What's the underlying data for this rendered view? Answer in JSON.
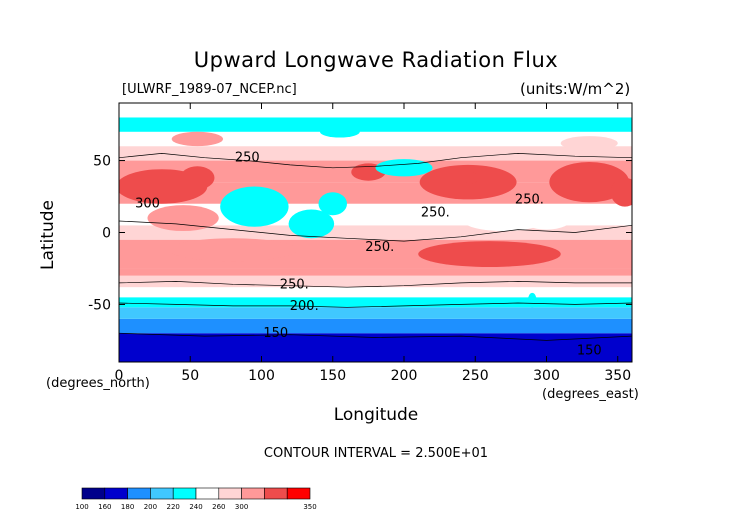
{
  "header": {
    "title": "Upward Longwave Radiation Flux",
    "source_file": "[ULWRF_1989-07_NCEP.nc]",
    "units": "(units:W/m^2)"
  },
  "footer": {
    "contour_interval": "CONTOUR INTERVAL = 2.500E+01"
  },
  "colors": {
    "c100": "#00008b",
    "c160": "#0000cd",
    "c180": "#1e90ff",
    "c200": "#40c8ff",
    "c220": "#00ffff",
    "c240": "#ffffff",
    "c250": "#ffd5d5",
    "c260": "#ff9999",
    "c300": "#ee4c4c",
    "c350": "#ff0000"
  },
  "chart_data": {
    "type": "heatmap",
    "title": "Upward Longwave Radiation Flux",
    "xlabel": "Longitude",
    "ylabel": "Latitude",
    "x_units": "(degrees_east)",
    "y_units": "(degrees_north)",
    "xlim": [
      0,
      360
    ],
    "ylim": [
      -90,
      90
    ],
    "xticks": [
      0,
      50,
      100,
      150,
      200,
      250,
      300,
      350
    ],
    "yticks": [
      -50,
      0,
      50
    ],
    "colorbar": {
      "boundaries": [
        100,
        160,
        180,
        200,
        220,
        240,
        260,
        300,
        350
      ],
      "colors": [
        "#00008b",
        "#0000cd",
        "#1e90ff",
        "#40c8ff",
        "#00ffff",
        "#ffffff",
        "#ffd5d5",
        "#ff9999",
        "#ee4c4c",
        "#ff0000"
      ]
    },
    "zonal_bands": [
      {
        "lat_min": -90,
        "lat_max": -70,
        "value": 150
      },
      {
        "lat_min": -70,
        "lat_max": -60,
        "value": 170
      },
      {
        "lat_min": -60,
        "lat_max": -52,
        "value": 195
      },
      {
        "lat_min": -52,
        "lat_max": -45,
        "value": 215
      },
      {
        "lat_min": -45,
        "lat_max": -38,
        "value": 230
      },
      {
        "lat_min": -38,
        "lat_max": -30,
        "value": 245
      },
      {
        "lat_min": -30,
        "lat_max": -25,
        "value": 265
      },
      {
        "lat_min": -25,
        "lat_max": -5,
        "value": 285
      },
      {
        "lat_min": -5,
        "lat_max": 5,
        "value": 255
      },
      {
        "lat_min": 5,
        "lat_max": 20,
        "value": 235
      },
      {
        "lat_min": 20,
        "lat_max": 35,
        "value": 275
      },
      {
        "lat_min": 35,
        "lat_max": 50,
        "value": 262
      },
      {
        "lat_min": 50,
        "lat_max": 60,
        "value": 248
      },
      {
        "lat_min": 60,
        "lat_max": 70,
        "value": 238
      },
      {
        "lat_min": 70,
        "lat_max": 80,
        "value": 215
      },
      {
        "lat_min": 80,
        "lat_max": 90,
        "value": 235
      }
    ],
    "features": [
      {
        "lon": 30,
        "lat": 32,
        "rx": 32,
        "ry": 12,
        "value": 320
      },
      {
        "lon": 55,
        "lat": 38,
        "rx": 12,
        "ry": 8,
        "value": 330
      },
      {
        "lon": 45,
        "lat": 10,
        "rx": 25,
        "ry": 9,
        "value": 265
      },
      {
        "lon": 95,
        "lat": 18,
        "rx": 24,
        "ry": 14,
        "value": 212
      },
      {
        "lon": 135,
        "lat": 6,
        "rx": 16,
        "ry": 10,
        "value": 215
      },
      {
        "lon": 150,
        "lat": 20,
        "rx": 10,
        "ry": 8,
        "value": 218
      },
      {
        "lon": 175,
        "lat": 42,
        "rx": 12,
        "ry": 6,
        "value": 300
      },
      {
        "lon": 200,
        "lat": 45,
        "rx": 20,
        "ry": 6,
        "value": 215
      },
      {
        "lon": 245,
        "lat": 35,
        "rx": 34,
        "ry": 12,
        "value": 310
      },
      {
        "lon": 247,
        "lat": 38,
        "rx": 5,
        "ry": 4,
        "value": 345
      },
      {
        "lon": 270,
        "lat": 8,
        "rx": 28,
        "ry": 7,
        "value": 220
      },
      {
        "lon": 300,
        "lat": 10,
        "rx": 18,
        "ry": 8,
        "value": 222
      },
      {
        "lon": 330,
        "lat": 35,
        "rx": 28,
        "ry": 14,
        "value": 300
      },
      {
        "lon": 355,
        "lat": 28,
        "rx": 10,
        "ry": 10,
        "value": 330
      },
      {
        "lon": 260,
        "lat": -15,
        "rx": 50,
        "ry": 9,
        "value": 300
      },
      {
        "lon": 80,
        "lat": -12,
        "rx": 45,
        "ry": 8,
        "value": 295
      },
      {
        "lon": 155,
        "lat": 70,
        "rx": 14,
        "ry": 4,
        "value": 210
      },
      {
        "lon": 290,
        "lat": -47,
        "rx": 3,
        "ry": 5,
        "value": 200
      },
      {
        "lon": 55,
        "lat": 65,
        "rx": 18,
        "ry": 5,
        "value": 260
      },
      {
        "lon": 330,
        "lat": 62,
        "rx": 20,
        "ry": 5,
        "value": 255
      }
    ],
    "contour_labels": [
      {
        "text": "250",
        "lon": 90,
        "lat": 52
      },
      {
        "text": "300",
        "lon": 20,
        "lat": 20
      },
      {
        "text": "250.",
        "lon": 222,
        "lat": 14
      },
      {
        "text": "250.",
        "lon": 288,
        "lat": 23
      },
      {
        "text": "250.",
        "lon": 183,
        "lat": -10
      },
      {
        "text": "250.",
        "lon": 123,
        "lat": -36
      },
      {
        "text": "200.",
        "lon": 130,
        "lat": -51
      },
      {
        "text": "150",
        "lon": 110,
        "lat": -70
      },
      {
        "text": "150",
        "lon": 330,
        "lat": -82
      }
    ],
    "contour_lines": [
      {
        "value": 250,
        "points": [
          [
            0,
            -35
          ],
          [
            40,
            -34
          ],
          [
            80,
            -36
          ],
          [
            120,
            -37
          ],
          [
            160,
            -38
          ],
          [
            200,
            -37
          ],
          [
            240,
            -35
          ],
          [
            280,
            -34
          ],
          [
            320,
            -35
          ],
          [
            360,
            -35
          ]
        ]
      },
      {
        "value": 200,
        "points": [
          [
            0,
            -49
          ],
          [
            40,
            -50
          ],
          [
            80,
            -51
          ],
          [
            120,
            -51
          ],
          [
            160,
            -52
          ],
          [
            200,
            -51
          ],
          [
            240,
            -50
          ],
          [
            280,
            -49
          ],
          [
            320,
            -50
          ],
          [
            360,
            -49
          ]
        ]
      },
      {
        "value": 150,
        "points": [
          [
            0,
            -70
          ],
          [
            60,
            -72
          ],
          [
            120,
            -71
          ],
          [
            180,
            -73
          ],
          [
            240,
            -72
          ],
          [
            300,
            -75
          ],
          [
            360,
            -72
          ]
        ]
      },
      {
        "value": 250,
        "points": [
          [
            0,
            52
          ],
          [
            30,
            55
          ],
          [
            60,
            52
          ],
          [
            90,
            50
          ],
          [
            120,
            47
          ],
          [
            150,
            45
          ],
          [
            180,
            46
          ],
          [
            210,
            48
          ],
          [
            240,
            52
          ],
          [
            280,
            55
          ],
          [
            320,
            53
          ],
          [
            360,
            52
          ]
        ]
      },
      {
        "value": 250,
        "points": [
          [
            0,
            8
          ],
          [
            40,
            6
          ],
          [
            80,
            2
          ],
          [
            120,
            -2
          ],
          [
            160,
            -4
          ],
          [
            200,
            -6
          ],
          [
            240,
            -3
          ],
          [
            280,
            2
          ],
          [
            320,
            0
          ],
          [
            360,
            5
          ]
        ]
      }
    ]
  }
}
